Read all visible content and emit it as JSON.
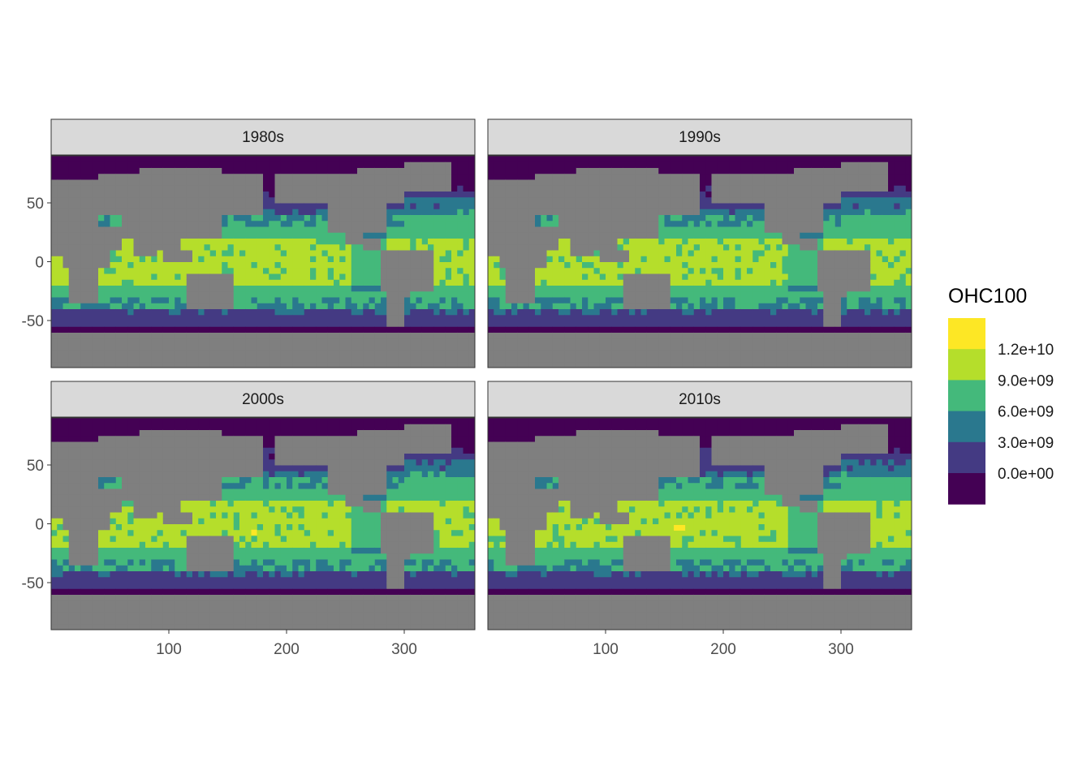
{
  "chart_data": {
    "type": "heatmap",
    "facets": [
      "1980s",
      "1990s",
      "2000s",
      "2010s"
    ],
    "xlim": [
      0,
      360
    ],
    "ylim": [
      -90,
      90
    ],
    "x_ticks": [
      100,
      200,
      300
    ],
    "y_ticks": [
      -50,
      0,
      50
    ],
    "x_tick_labels": [
      "100",
      "200",
      "300"
    ],
    "y_tick_labels": [
      "-50",
      "0",
      "50"
    ],
    "fill_variable": "OHC100",
    "legend": {
      "title": "OHC100",
      "placement": "right",
      "break_labels": [
        "1.2e+10",
        "9.0e+09",
        "6.0e+09",
        "3.0e+09",
        "0.0e+00"
      ],
      "bins": [
        {
          "range": [
            12000000000,
            15000000000
          ],
          "color": "#fde725"
        },
        {
          "range": [
            9000000000,
            12000000000
          ],
          "color": "#b5de2b"
        },
        {
          "range": [
            6000000000,
            9000000000
          ],
          "color": "#44b97b"
        },
        {
          "range": [
            3000000000,
            6000000000
          ],
          "color": "#2a788e"
        },
        {
          "range": [
            0,
            3000000000
          ],
          "color": "#443a83"
        },
        {
          "range": [
            -3000000000,
            0
          ],
          "color": "#440154"
        }
      ]
    },
    "land_color": "#7f7f7f",
    "hotspots": [
      {
        "facet": "2000s",
        "lon": 172,
        "lat": -7,
        "bin": "1.2e+10+"
      },
      {
        "facet": "2010s",
        "lon": 160,
        "lat": -3,
        "bin": "1.2e+10+"
      }
    ]
  }
}
